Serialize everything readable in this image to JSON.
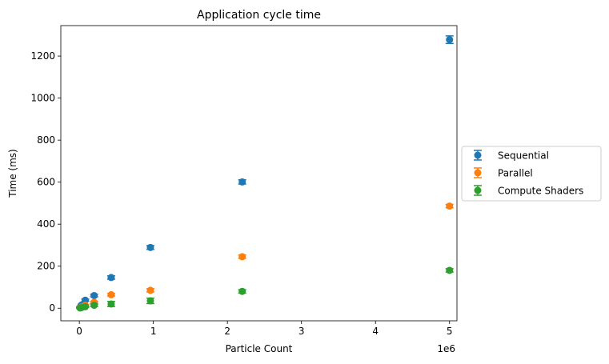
{
  "chart_data": {
    "type": "scatter",
    "title": "Application cycle time",
    "xlabel": "Particle Count",
    "ylabel": "Time (ms)",
    "x_offset_label": "1e6",
    "xlim": [
      -0.25,
      5.1
    ],
    "ylim": [
      -60,
      1345
    ],
    "xticks": [
      0,
      1,
      2,
      3,
      4,
      5
    ],
    "yticks": [
      0,
      200,
      400,
      600,
      800,
      1000,
      1200
    ],
    "grid": false,
    "error_bars": true,
    "legend_position": "outside-right",
    "x": [
      0.01,
      0.03,
      0.08,
      0.2,
      0.43,
      0.96,
      2.2,
      5.0
    ],
    "series": [
      {
        "name": "Sequential",
        "color": "#1f77b4",
        "values": [
          4,
          15,
          38,
          60,
          146,
          289,
          601,
          1278
        ],
        "errors": [
          3,
          4,
          5,
          6,
          8,
          9,
          10,
          18
        ]
      },
      {
        "name": "Parallel",
        "color": "#ff7f0e",
        "values": [
          2,
          6,
          14,
          28,
          64,
          85,
          245,
          486
        ],
        "errors": [
          2,
          3,
          4,
          5,
          6,
          8,
          8,
          8
        ]
      },
      {
        "name": "Compute Shaders",
        "color": "#2ca02c",
        "values": [
          1,
          3,
          7,
          14,
          20,
          35,
          80,
          180
        ],
        "errors": [
          2,
          2,
          3,
          6,
          12,
          13,
          8,
          8
        ]
      }
    ]
  }
}
